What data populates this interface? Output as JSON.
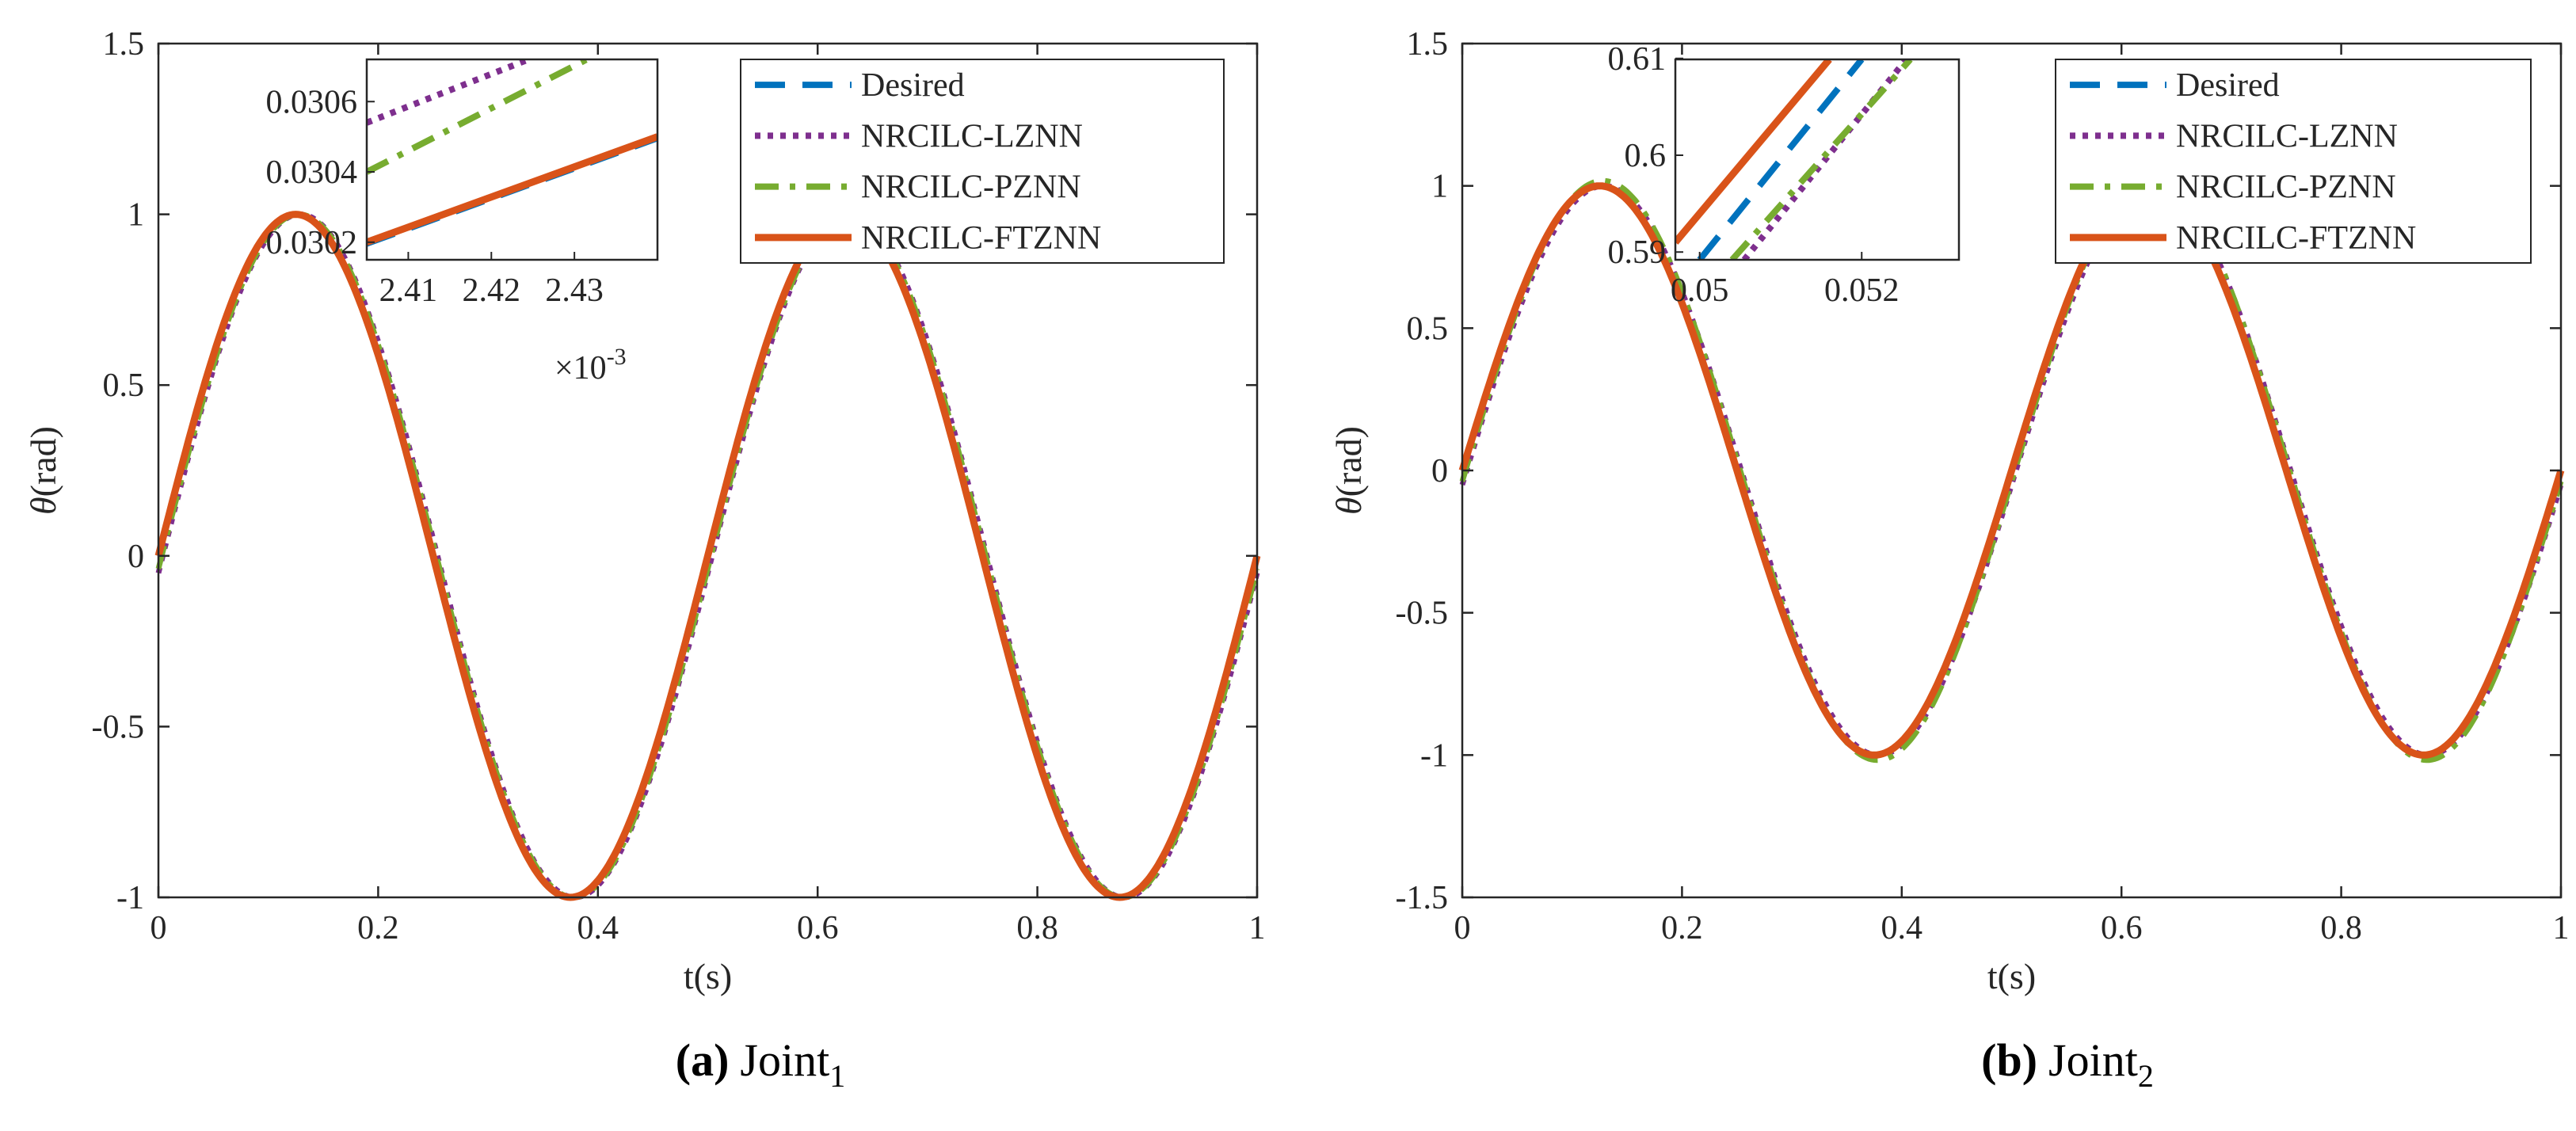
{
  "figure": {
    "panels": [
      {
        "caption_letter": "(a)",
        "caption_text": "Joint",
        "caption_sub": "1"
      },
      {
        "caption_letter": "(b)",
        "caption_text": "Joint",
        "caption_sub": "2"
      }
    ]
  },
  "colors": {
    "desired": "#0072BD",
    "lznn": "#7E2F8E",
    "pznn": "#77AC30",
    "ftznn": "#D95319",
    "axis": "#262626"
  },
  "chart_data": [
    {
      "type": "line",
      "title": "",
      "caption": "(a) Joint1",
      "xlabel": "t(s)",
      "ylabel_symbol": "θ",
      "ylabel_unit": "(rad)",
      "xlim": [
        0,
        1
      ],
      "ylim": [
        -1,
        1.5
      ],
      "xticks": [
        0,
        0.2,
        0.4,
        0.6,
        0.8,
        1
      ],
      "xtick_labels": [
        "0",
        "0.2",
        "0.4",
        "0.6",
        "0.8",
        "1"
      ],
      "yticks": [
        -1,
        -0.5,
        0,
        0.5,
        1,
        1.5
      ],
      "ytick_labels": [
        "-1",
        "-0.5",
        "0",
        "0.5",
        "1",
        "1.5"
      ],
      "function": "sin(4*pi*t)",
      "legend_position": "top-right",
      "series": [
        {
          "name": "Desired",
          "style": "dashed"
        },
        {
          "name": "NRCILC-LZNN",
          "style": "dotted"
        },
        {
          "name": "NRCILC-PZNN",
          "style": "dashdot"
        },
        {
          "name": "NRCILC-FTZNN",
          "style": "solid"
        }
      ],
      "inset": {
        "position": "top-left",
        "xlim": [
          2.405,
          2.44
        ],
        "ylim": [
          0.03015,
          0.03072
        ],
        "xticks": [
          2.41,
          2.42,
          2.43
        ],
        "xtick_labels": [
          "2.41",
          "2.42",
          "2.43"
        ],
        "yticks": [
          0.0302,
          0.0304,
          0.0306
        ],
        "ytick_labels": [
          "0.0302",
          "0.0304",
          "0.0306"
        ],
        "x_multiplier": "×10",
        "x_multiplier_exp": "-3",
        "lines": [
          {
            "series": "Desired",
            "x": [
              2.405,
              2.44
            ],
            "y": [
              0.03019,
              0.03049
            ]
          },
          {
            "series": "NRCILC-LZNN",
            "x": [
              2.405,
              2.4245
            ],
            "y": [
              0.03054,
              0.03072
            ]
          },
          {
            "series": "NRCILC-PZNN",
            "x": [
              2.405,
              2.4315
            ],
            "y": [
              0.0304,
              0.03072
            ]
          },
          {
            "series": "NRCILC-FTZNN",
            "x": [
              2.405,
              2.44
            ],
            "y": [
              0.0302,
              0.0305
            ]
          }
        ]
      }
    },
    {
      "type": "line",
      "title": "",
      "caption": "(b) Joint2",
      "xlabel": "t(s)",
      "ylabel_symbol": "θ",
      "ylabel_unit": "(rad)",
      "xlim": [
        0,
        1
      ],
      "ylim": [
        -1.5,
        1.5
      ],
      "xticks": [
        0,
        0.2,
        0.4,
        0.6,
        0.8,
        1
      ],
      "xtick_labels": [
        "0",
        "0.2",
        "0.4",
        "0.6",
        "0.8",
        "1"
      ],
      "yticks": [
        -1.5,
        -1,
        -0.5,
        0,
        0.5,
        1,
        1.5
      ],
      "ytick_labels": [
        "-1.5",
        "-1",
        "-0.5",
        "0",
        "0.5",
        "1",
        "1.5"
      ],
      "function": "sin(4*pi*t)",
      "legend_position": "top-right",
      "series": [
        {
          "name": "Desired",
          "style": "dashed"
        },
        {
          "name": "NRCILC-LZNN",
          "style": "dotted"
        },
        {
          "name": "NRCILC-PZNN",
          "style": "dashdot"
        },
        {
          "name": "NRCILC-FTZNN",
          "style": "solid"
        }
      ],
      "inset": {
        "position": "top-left",
        "xlim": [
          0.0497,
          0.0532
        ],
        "ylim": [
          0.5892,
          0.6099
        ],
        "xticks": [
          0.05,
          0.052
        ],
        "xtick_labels": [
          "0.05",
          "0.052"
        ],
        "yticks": [
          0.59,
          0.6,
          0.61
        ],
        "ytick_labels": [
          "0.59",
          "0.6",
          "0.61"
        ],
        "lines": [
          {
            "series": "Desired",
            "x": [
              0.05,
              0.052
            ],
            "y": [
              0.5892,
              0.6099
            ]
          },
          {
            "series": "NRCILC-LZNN",
            "x": [
              0.05055,
              0.05255
            ],
            "y": [
              0.5892,
              0.6099
            ]
          },
          {
            "series": "NRCILC-PZNN",
            "x": [
              0.0504,
              0.0526
            ],
            "y": [
              0.5892,
              0.6099
            ]
          },
          {
            "series": "NRCILC-FTZNN",
            "x": [
              0.0497,
              0.0516
            ],
            "y": [
              0.591,
              0.6099
            ]
          }
        ]
      }
    }
  ]
}
